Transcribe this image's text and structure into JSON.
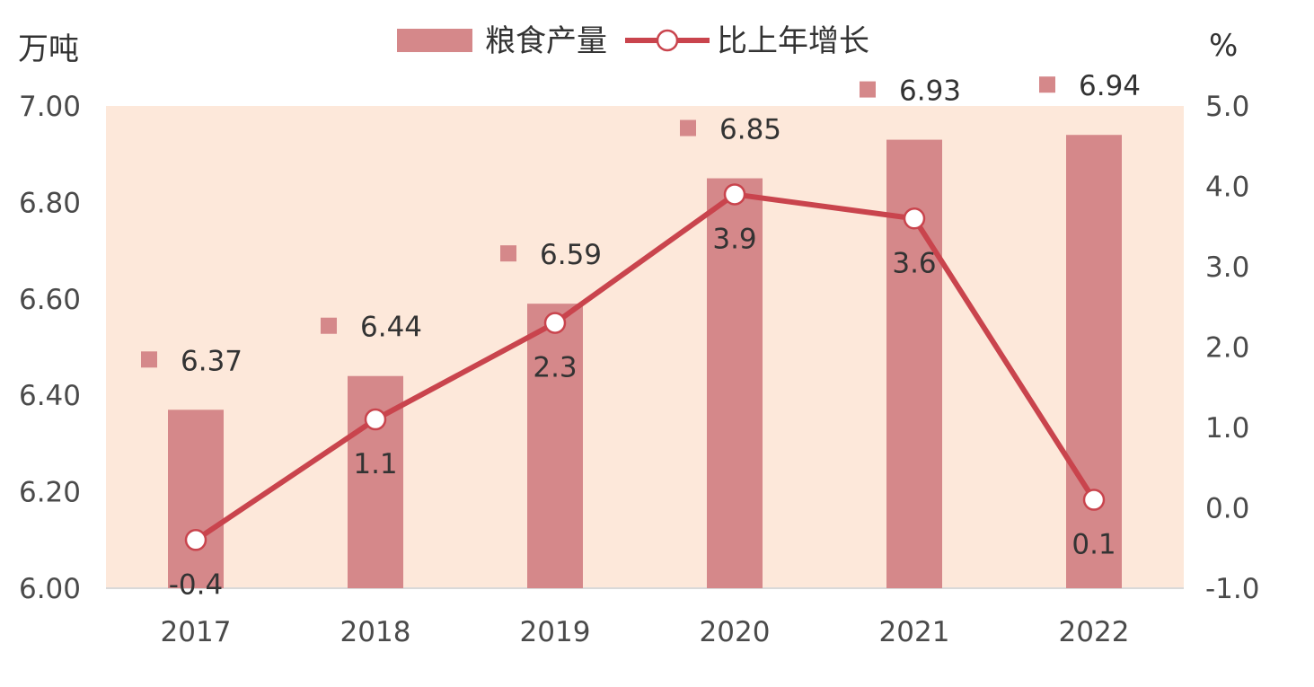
{
  "chart_data": {
    "type": "bar",
    "categories": [
      "2017",
      "2018",
      "2019",
      "2020",
      "2021",
      "2022"
    ],
    "series": [
      {
        "name": "粮食产量",
        "type": "bar",
        "axis": "left",
        "values": [
          6.37,
          6.44,
          6.59,
          6.85,
          6.93,
          6.94
        ],
        "labels": [
          "6.37",
          "6.44",
          "6.59",
          "6.85",
          "6.93",
          "6.94"
        ],
        "color": "#d5888a"
      },
      {
        "name": "比上年增长",
        "type": "line",
        "axis": "right",
        "values": [
          -0.4,
          1.1,
          2.3,
          3.9,
          3.6,
          0.1
        ],
        "labels": [
          "-0.4",
          "1.1",
          "2.3",
          "3.9",
          "3.6",
          "0.1"
        ],
        "color": "#c9444d"
      }
    ],
    "y_left": {
      "unit": "万吨",
      "range": [
        6.0,
        7.0
      ],
      "ticks": [
        "6.00",
        "6.20",
        "6.40",
        "6.60",
        "6.80",
        "7.00"
      ]
    },
    "y_right": {
      "unit": "%",
      "range": [
        -1.0,
        5.0
      ],
      "ticks": [
        "-1.0",
        "0.0",
        "1.0",
        "2.0",
        "3.0",
        "4.0",
        "5.0"
      ]
    },
    "plot_background": "#fde8da",
    "grid": false,
    "legend_position": "top"
  }
}
